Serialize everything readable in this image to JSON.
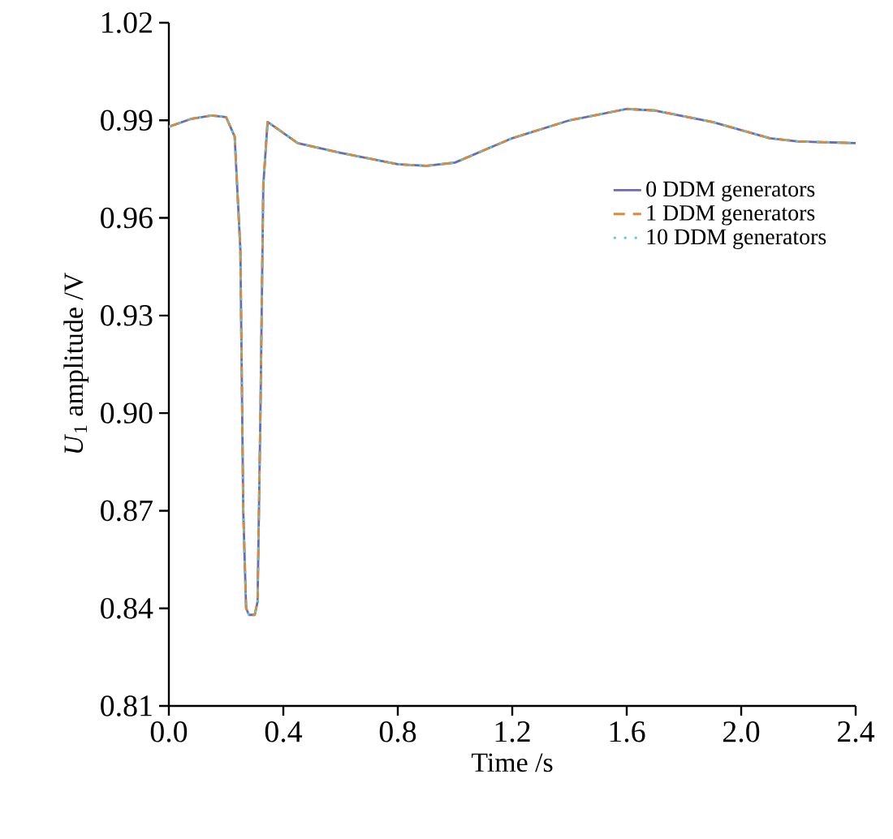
{
  "chart_data": {
    "type": "line",
    "xlabel": "Time /s",
    "ylabel": "$_{}$*U*$_{1}$ amplitude /V",
    "x": [
      0,
      0.08,
      0.15,
      0.2,
      0.23,
      0.25,
      0.26,
      0.27,
      0.28,
      0.3,
      0.31,
      0.32,
      0.33,
      0.345,
      0.37,
      0.45,
      0.6,
      0.8,
      0.9,
      1.0,
      1.2,
      1.4,
      1.6,
      1.7,
      1.9,
      2.1,
      2.2,
      2.4
    ],
    "series": [
      {
        "name": "0 DDM generators",
        "color": "#6a6ab8",
        "line_style": "solid",
        "values": [
          0.988,
          0.9905,
          0.9915,
          0.991,
          0.985,
          0.95,
          0.87,
          0.84,
          0.838,
          0.838,
          0.842,
          0.9,
          0.97,
          0.9895,
          0.988,
          0.983,
          0.98,
          0.9765,
          0.976,
          0.977,
          0.9845,
          0.99,
          0.9935,
          0.993,
          0.9895,
          0.9845,
          0.9835,
          0.983
        ]
      },
      {
        "name": "1 DDM generators",
        "color": "#d98a3a",
        "line_style": "dashed",
        "values": [
          0.988,
          0.9905,
          0.9915,
          0.991,
          0.985,
          0.95,
          0.87,
          0.84,
          0.838,
          0.838,
          0.842,
          0.9,
          0.97,
          0.9895,
          0.988,
          0.983,
          0.98,
          0.9765,
          0.976,
          0.977,
          0.9845,
          0.99,
          0.9935,
          0.993,
          0.9895,
          0.9845,
          0.9835,
          0.983
        ]
      },
      {
        "name": "10 DDM generators",
        "color": "#5cc8c8",
        "line_style": "dotted",
        "values": [
          0.988,
          0.9905,
          0.9915,
          0.991,
          0.985,
          0.95,
          0.87,
          0.84,
          0.838,
          0.838,
          0.842,
          0.9,
          0.97,
          0.9895,
          0.988,
          0.983,
          0.98,
          0.9765,
          0.976,
          0.977,
          0.9845,
          0.99,
          0.9935,
          0.993,
          0.9895,
          0.9845,
          0.9835,
          0.983
        ]
      }
    ],
    "xlim": [
      0,
      2.4
    ],
    "xticks": [
      {
        "value": 0,
        "label": "0.0"
      },
      0.4,
      0.8,
      1.2,
      1.6,
      {
        "value": 2,
        "label": "2.0"
      },
      2.4
    ],
    "ylim": [
      0.81,
      1.02
    ],
    "yticks": [
      0.81,
      0.84,
      0.87,
      {
        "value": 0.9,
        "label": "0.90"
      },
      0.93,
      0.96,
      0.99,
      1.02
    ],
    "legend": "right",
    "grid": false
  }
}
